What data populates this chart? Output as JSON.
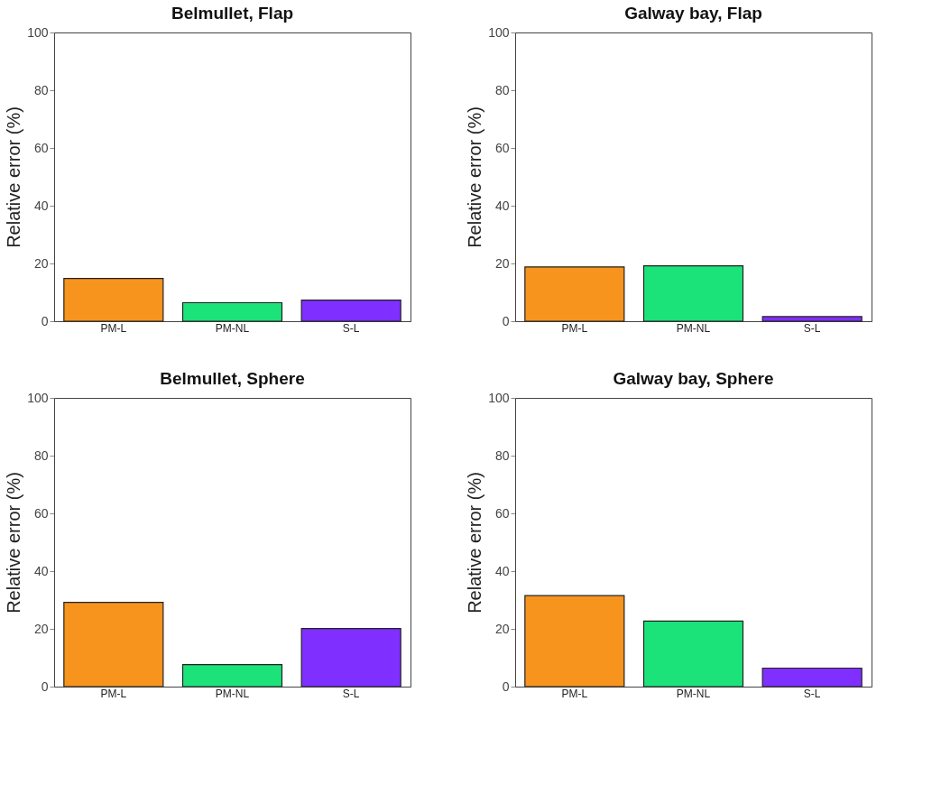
{
  "chart_data": [
    {
      "type": "bar",
      "title": "Belmullet, Flap",
      "ylabel": "Relative error (%)",
      "categories": [
        "PM-L",
        "PM-NL",
        "S-L"
      ],
      "values": [
        14.8,
        6.4,
        7.3
      ],
      "colors": [
        "#f7941d",
        "#1ce27a",
        "#7f2fff"
      ],
      "ylim": [
        0,
        100
      ],
      "yticks": [
        0,
        20,
        40,
        60,
        80,
        100
      ],
      "grid": false
    },
    {
      "type": "bar",
      "title": "Galway bay, Flap",
      "ylabel": "Relative error (%)",
      "categories": [
        "PM-L",
        "PM-NL",
        "S-L"
      ],
      "values": [
        18.8,
        19.2,
        1.6
      ],
      "colors": [
        "#f7941d",
        "#1ce27a",
        "#7f2fff"
      ],
      "ylim": [
        0,
        100
      ],
      "yticks": [
        0,
        20,
        40,
        60,
        80,
        100
      ],
      "grid": false
    },
    {
      "type": "bar",
      "title": "Belmullet, Sphere",
      "ylabel": "Relative error (%)",
      "categories": [
        "PM-L",
        "PM-NL",
        "S-L"
      ],
      "values": [
        29.2,
        7.6,
        20.1
      ],
      "colors": [
        "#f7941d",
        "#1ce27a",
        "#7f2fff"
      ],
      "ylim": [
        0,
        100
      ],
      "yticks": [
        0,
        20,
        40,
        60,
        80,
        100
      ],
      "grid": false
    },
    {
      "type": "bar",
      "title": "Galway bay, Sphere",
      "ylabel": "Relative error (%)",
      "categories": [
        "PM-L",
        "PM-NL",
        "S-L"
      ],
      "values": [
        31.5,
        22.7,
        6.4
      ],
      "colors": [
        "#f7941d",
        "#1ce27a",
        "#7f2fff"
      ],
      "ylim": [
        0,
        100
      ],
      "yticks": [
        0,
        20,
        40,
        60,
        80,
        100
      ],
      "grid": false
    }
  ]
}
